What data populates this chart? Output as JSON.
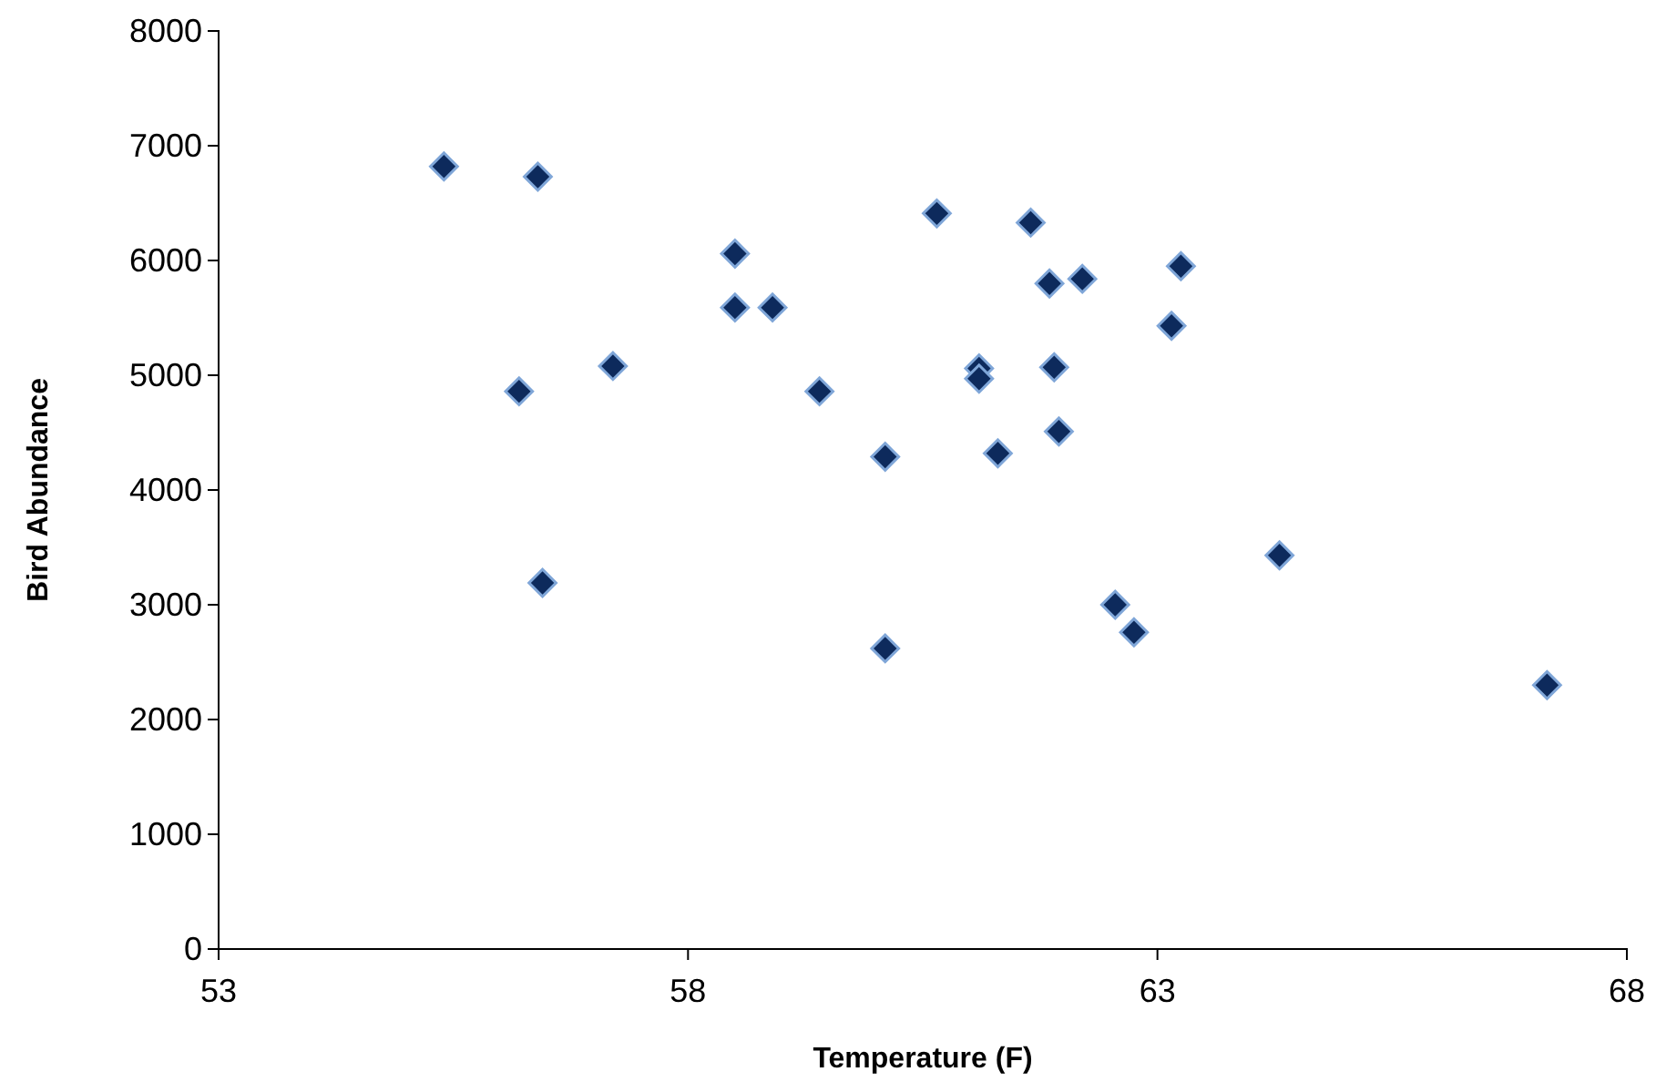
{
  "chart_data": {
    "type": "scatter",
    "xlabel": "Temperature (F)",
    "ylabel": "Bird Abundance",
    "x": [
      55.4,
      56.4,
      56.2,
      56.45,
      57.2,
      58.5,
      58.5,
      58.9,
      59.4,
      60.1,
      60.1,
      60.65,
      61.1,
      61.1,
      61.3,
      61.65,
      61.85,
      61.9,
      61.95,
      62.2,
      62.55,
      62.75,
      63.15,
      63.25,
      64.3,
      67.15
    ],
    "series": [
      {
        "color": "#0d2a5c",
        "values": [
          6820,
          6730,
          4860,
          3190,
          5080,
          6060,
          5590,
          5590,
          4860,
          4290,
          2620,
          6410,
          5060,
          4970,
          4320,
          6330,
          5800,
          5070,
          4510,
          5840,
          3000,
          2760,
          5430,
          5950,
          3430,
          2300
        ]
      }
    ],
    "xlim": [
      53,
      68
    ],
    "xticks": [
      53,
      58,
      63,
      68
    ],
    "ylim": [
      0,
      8000
    ],
    "yticks": [
      0,
      1000,
      2000,
      3000,
      4000,
      5000,
      6000,
      7000,
      8000
    ],
    "grid": false,
    "marker": "diamond"
  }
}
